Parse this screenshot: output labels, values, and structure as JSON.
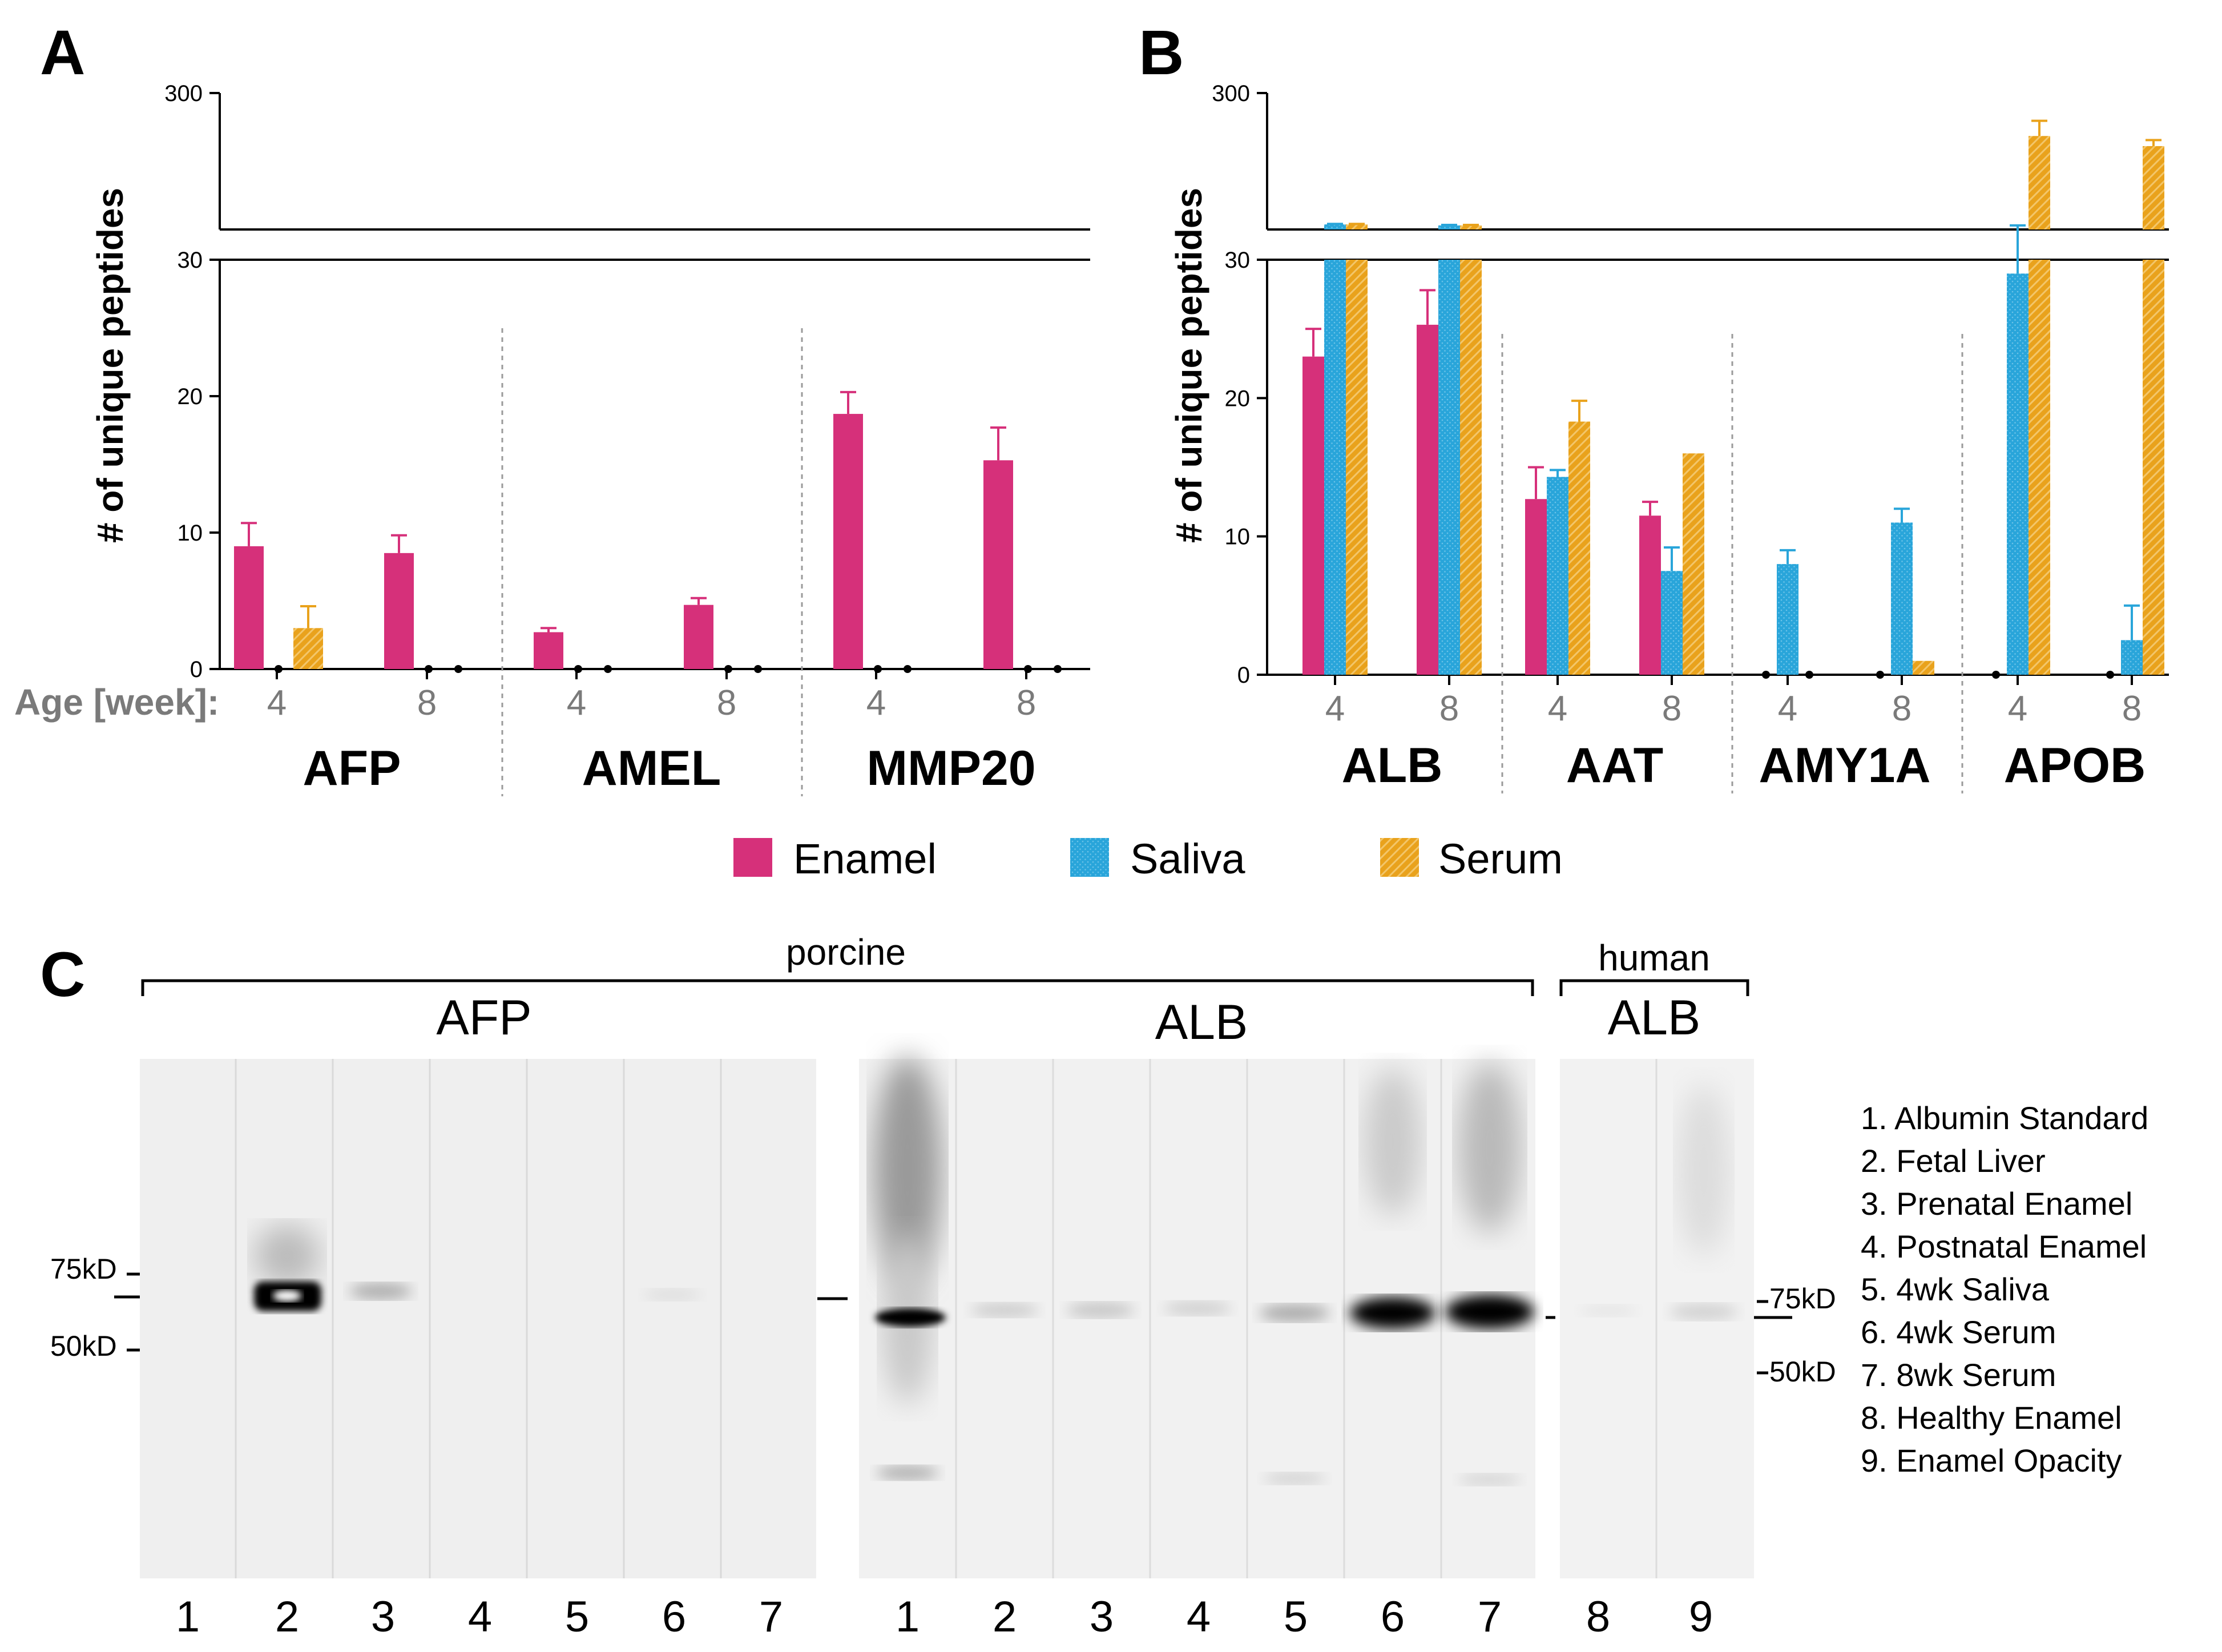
{
  "colors": {
    "enamel": "#d6307a",
    "saliva": "#29a5da",
    "serum": "#e9a21c"
  },
  "legend": [
    {
      "key": "enamel",
      "label": "Enamel"
    },
    {
      "key": "saliva",
      "label": "Saliva"
    },
    {
      "key": "serum",
      "label": "Serum"
    }
  ],
  "chart_data": [
    {
      "panel": "A",
      "type": "bar",
      "ylabel": "# of unique peptides",
      "x_axis_label": "Age [week]:",
      "y_break": {
        "lower_range": [
          0,
          30
        ],
        "upper_max": 300
      },
      "yticks_lower": [
        "0",
        "10",
        "20",
        "30"
      ],
      "ytick_upper": "300",
      "series": [
        "Enamel",
        "Saliva",
        "Serum"
      ],
      "groups": [
        {
          "name": "AFP",
          "ages": [
            {
              "age": "4",
              "values": [
                9.0,
                0,
                3.0
              ],
              "errors": [
                1.7,
                0,
                1.6
              ]
            },
            {
              "age": "8",
              "values": [
                8.5,
                0,
                0
              ],
              "errors": [
                1.3,
                0,
                0
              ]
            }
          ]
        },
        {
          "name": "AMEL",
          "ages": [
            {
              "age": "4",
              "values": [
                2.7,
                0,
                0
              ],
              "errors": [
                0.3,
                0,
                0
              ]
            },
            {
              "age": "8",
              "values": [
                4.7,
                0,
                0
              ],
              "errors": [
                0.5,
                0,
                0
              ]
            }
          ]
        },
        {
          "name": "MMP20",
          "ages": [
            {
              "age": "4",
              "values": [
                18.7,
                0,
                0
              ],
              "errors": [
                1.6,
                0,
                0
              ]
            },
            {
              "age": "8",
              "values": [
                15.3,
                0,
                0
              ],
              "errors": [
                2.4,
                0,
                0
              ]
            }
          ]
        }
      ]
    },
    {
      "panel": "B",
      "type": "bar",
      "ylabel": "# of unique peptides",
      "y_break": {
        "lower_range": [
          0,
          30
        ],
        "upper_max": 300
      },
      "yticks_lower": [
        "0",
        "10",
        "20",
        "30"
      ],
      "ytick_upper": "300",
      "series": [
        "Enamel",
        "Saliva",
        "Serum"
      ],
      "groups": [
        {
          "name": "ALB",
          "ages": [
            {
              "age": "4",
              "values": [
                23,
                40,
                40
              ],
              "errors": [
                2,
                1,
                1
              ]
            },
            {
              "age": "8",
              "values": [
                25.3,
                38,
                38
              ],
              "errors": [
                2.5,
                1,
                1
              ]
            }
          ]
        },
        {
          "name": "AAT",
          "ages": [
            {
              "age": "4",
              "values": [
                12.7,
                14.3,
                18.3
              ],
              "errors": [
                2.3,
                0.5,
                1.5
              ]
            },
            {
              "age": "8",
              "values": [
                11.5,
                7.5,
                16
              ],
              "errors": [
                1,
                1.7,
                0
              ]
            }
          ]
        },
        {
          "name": "AMY1A",
          "ages": [
            {
              "age": "4",
              "values": [
                0,
                8,
                0
              ],
              "errors": [
                0,
                1,
                0
              ]
            },
            {
              "age": "8",
              "values": [
                0,
                11,
                1
              ],
              "errors": [
                0,
                1,
                0
              ]
            }
          ]
        },
        {
          "name": "APOB",
          "ages": [
            {
              "age": "4",
              "values": [
                0,
                29,
                215
              ],
              "errors": [
                0,
                9,
                30
              ]
            },
            {
              "age": "8",
              "values": [
                0,
                2.5,
                195
              ],
              "errors": [
                0,
                2.5,
                12
              ]
            }
          ]
        }
      ]
    }
  ],
  "panel_c": {
    "letter": "C",
    "porcine_label": "porcine",
    "human_label": "human",
    "blot_titles": [
      "AFP",
      "ALB",
      "ALB"
    ],
    "afp_lanes": [
      "1",
      "2",
      "3",
      "4",
      "5",
      "6",
      "7"
    ],
    "alb_lanes": [
      "1",
      "2",
      "3",
      "4",
      "5",
      "6",
      "7"
    ],
    "human_lanes": [
      "8",
      "9"
    ],
    "marker_75": "75kD",
    "marker_50": "50kD",
    "marker_75_right": "75kD",
    "marker_50_right": "50kD",
    "sample_key": [
      "1. Albumin Standard",
      "2. Fetal Liver",
      "3. Prenatal Enamel",
      "4. Postnatal Enamel",
      "5. 4wk Saliva",
      "6. 4wk Serum",
      "7. 8wk Serum",
      "8. Healthy Enamel",
      "9. Enamel Opacity"
    ]
  }
}
